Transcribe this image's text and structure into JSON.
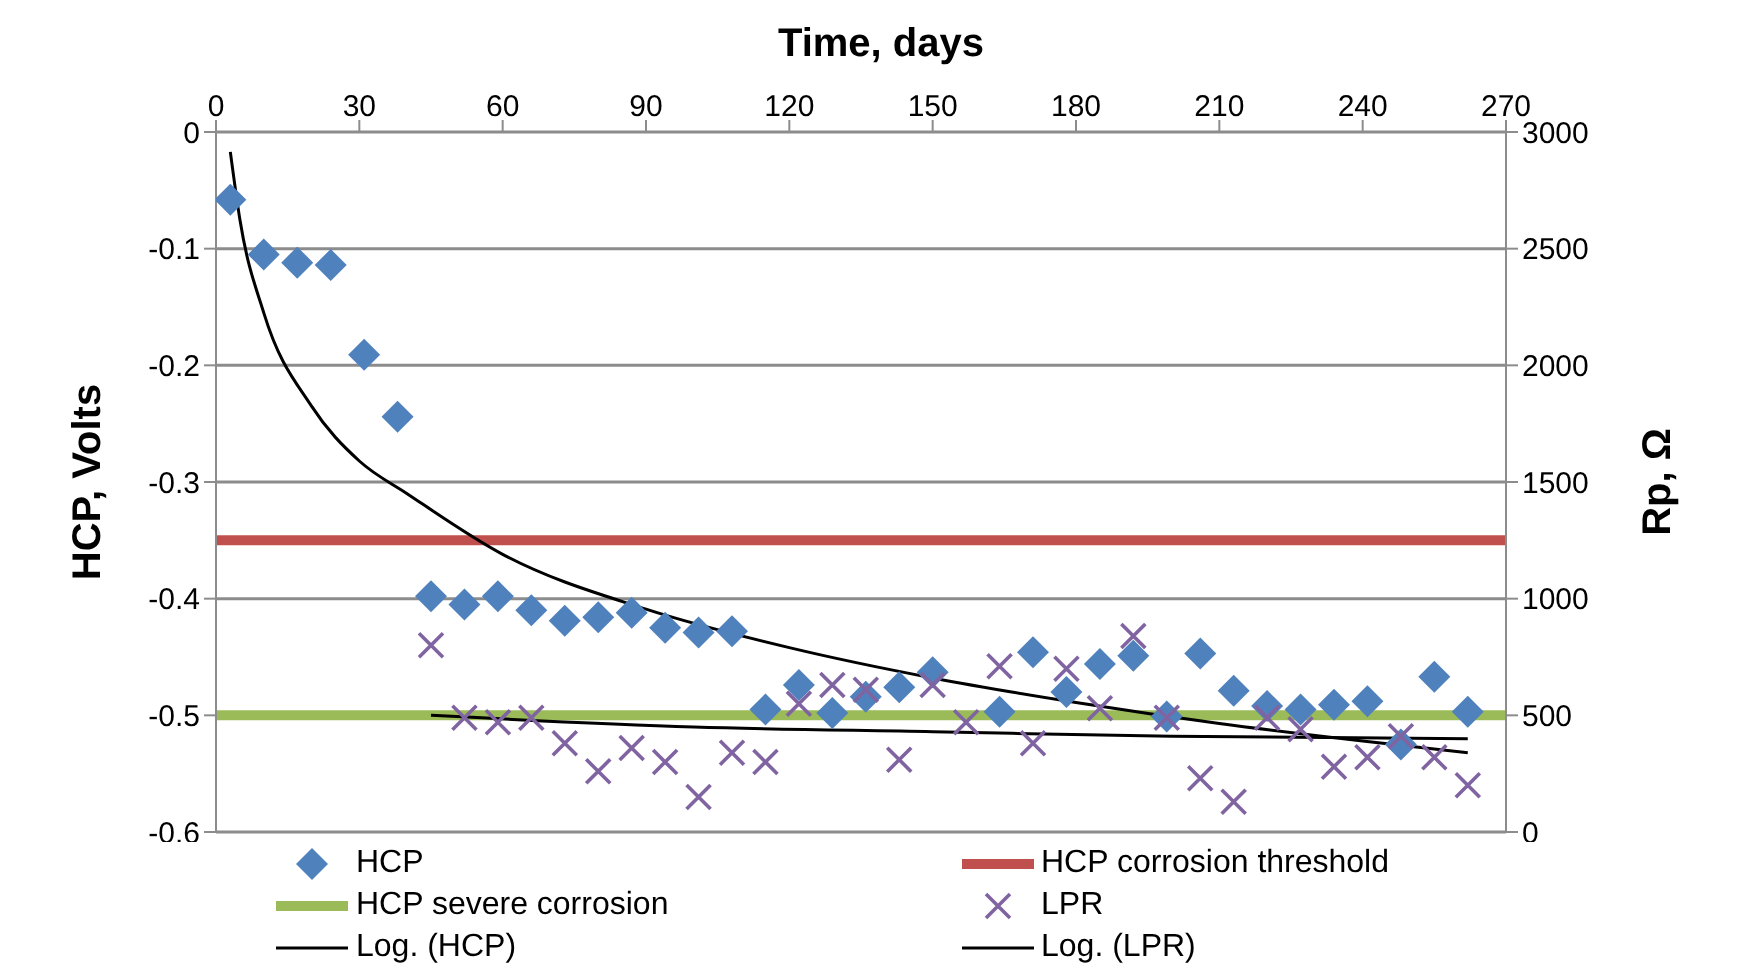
{
  "chart_data": {
    "type": "scatter",
    "xlabel": "Time, days",
    "ylabel": "HCP, Volts",
    "y2label": "Rp, Ω",
    "xlim": [
      0,
      270
    ],
    "xticks": [
      0,
      30,
      60,
      90,
      120,
      150,
      180,
      210,
      240,
      270
    ],
    "ylim": [
      -0.6,
      0
    ],
    "yticks": [
      0,
      -0.1,
      -0.2,
      -0.3,
      -0.4,
      -0.5,
      -0.6
    ],
    "y2lim": [
      0,
      3000
    ],
    "y2ticks": [
      0,
      500,
      1000,
      1500,
      2000,
      2500,
      3000
    ],
    "grid": "y",
    "legend": "bottom",
    "series": [
      {
        "name": "HCP",
        "marker": "diamond",
        "color": "#4f81bd",
        "x": [
          3,
          10,
          17,
          24,
          31,
          38,
          45,
          52,
          59,
          66,
          73,
          80,
          87,
          94,
          101,
          108,
          115,
          122,
          129,
          136,
          143,
          150,
          164,
          171,
          178,
          185,
          192,
          199,
          206,
          213,
          220,
          227,
          234,
          241,
          248,
          255,
          262
        ],
        "values": [
          -0.058,
          -0.105,
          -0.112,
          -0.114,
          -0.191,
          -0.244,
          -0.398,
          -0.405,
          -0.398,
          -0.41,
          -0.419,
          -0.416,
          -0.412,
          -0.425,
          -0.429,
          -0.428,
          -0.495,
          -0.474,
          -0.498,
          -0.484,
          -0.476,
          -0.463,
          -0.497,
          -0.446,
          -0.48,
          -0.456,
          -0.449,
          -0.501,
          -0.447,
          -0.479,
          -0.492,
          -0.495,
          -0.491,
          -0.488,
          -0.525,
          -0.467,
          -0.497
        ]
      },
      {
        "name": "LPR",
        "marker": "cross",
        "axis": "y2",
        "color": "#8064a2",
        "x": [
          45,
          52,
          59,
          66,
          73,
          80,
          87,
          94,
          101,
          108,
          115,
          122,
          129,
          136,
          143,
          150,
          157,
          164,
          171,
          178,
          185,
          192,
          199,
          206,
          213,
          220,
          227,
          234,
          241,
          248,
          255,
          262
        ],
        "values": [
          800,
          490,
          470,
          490,
          380,
          260,
          360,
          300,
          150,
          340,
          300,
          550,
          630,
          610,
          310,
          630,
          470,
          710,
          380,
          700,
          530,
          840,
          490,
          230,
          130,
          490,
          440,
          280,
          320,
          410,
          320,
          200
        ]
      },
      {
        "name": "Log. (HCP)",
        "type": "line",
        "marker": "none",
        "color": "#000000",
        "x": [
          3,
          5,
          10,
          20,
          30,
          40,
          60,
          90,
          120,
          150,
          180,
          210,
          240,
          262
        ],
        "values": [
          -0.017,
          -0.075,
          -0.155,
          -0.235,
          -0.282,
          -0.31,
          -0.362,
          -0.409,
          -0.442,
          -0.468,
          -0.489,
          -0.507,
          -0.522,
          -0.532
        ]
      },
      {
        "name": "Log. (LPR)",
        "type": "line",
        "marker": "none",
        "axis": "y2",
        "color": "#000000",
        "x": [
          45,
          100,
          150,
          200,
          262
        ],
        "values": [
          500,
          450,
          430,
          410,
          400
        ]
      }
    ],
    "ref_lines": [
      {
        "axis": "y",
        "value": -0.35,
        "label": "HCP corrosion threshold",
        "color": "#c0504d"
      },
      {
        "axis": "y",
        "value": -0.5,
        "label": "HCP severe corrosion",
        "color": "#9bbb59"
      }
    ]
  }
}
